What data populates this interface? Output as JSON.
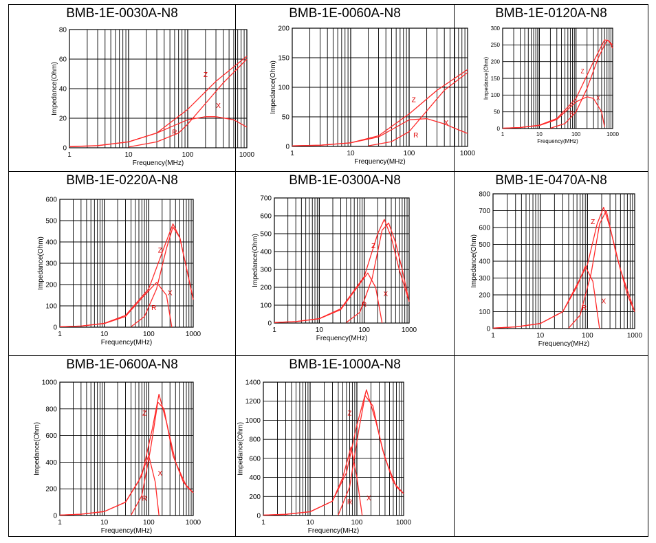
{
  "colors": {
    "curve": "#ff2a2a",
    "label": "#e00000",
    "grid": "#000000",
    "border": "#000000"
  },
  "chart_data": [
    {
      "type": "line",
      "title": "BMB-1E-0030A-N8",
      "xlabel": "Frequency(MHz)",
      "ylabel": "Impedance(Ohm)",
      "xscale": "log",
      "xlim": [
        1,
        1000
      ],
      "ylim": [
        0,
        80
      ],
      "xticks": [
        "1",
        "10",
        "100",
        "1000"
      ],
      "yticks": [
        "0",
        "20",
        "40",
        "60",
        "80"
      ],
      "grid": true,
      "series": [
        {
          "name": "Z",
          "x": [
            1,
            3,
            10,
            30,
            100,
            300,
            1000
          ],
          "y": [
            0.8,
            1.5,
            4,
            10,
            26,
            45,
            62
          ]
        },
        {
          "name": "X",
          "x": [
            1,
            3,
            10,
            30,
            100,
            200,
            300,
            600,
            1000
          ],
          "y": [
            0.7,
            1.4,
            4,
            10,
            19,
            21,
            21,
            19,
            14
          ]
        },
        {
          "name": "R",
          "x": [
            10,
            30,
            70,
            100,
            200,
            400,
            1000
          ],
          "y": [
            0.5,
            4,
            10,
            16,
            30,
            44,
            60
          ]
        }
      ],
      "labels": [
        {
          "text": "Z",
          "x": 200,
          "y": 48
        },
        {
          "text": "X",
          "x": 330,
          "y": 27
        },
        {
          "text": "R",
          "x": 60,
          "y": 9
        }
      ]
    },
    {
      "type": "line",
      "title": "BMB-1E-0060A-N8",
      "xlabel": "Frequency(MHz)",
      "ylabel": "Impedance(Ohm)",
      "xscale": "log",
      "xlim": [
        1,
        1000
      ],
      "ylim": [
        0,
        200
      ],
      "xticks": [
        "1",
        "10",
        "100",
        "1000"
      ],
      "yticks": [
        "0",
        "50",
        "100",
        "150",
        "200"
      ],
      "grid": true,
      "series": [
        {
          "name": "Z",
          "x": [
            1,
            3,
            10,
            30,
            100,
            300,
            1000
          ],
          "y": [
            1,
            2,
            6,
            18,
            55,
            95,
            130
          ]
        },
        {
          "name": "X",
          "x": [
            1,
            3,
            10,
            30,
            100,
            200,
            400,
            700,
            1000
          ],
          "y": [
            1,
            2,
            6,
            16,
            45,
            47,
            38,
            28,
            22
          ]
        },
        {
          "name": "R",
          "x": [
            20,
            50,
            100,
            200,
            400,
            1000
          ],
          "y": [
            1,
            8,
            25,
            60,
            95,
            125
          ]
        }
      ],
      "labels": [
        {
          "text": "Z",
          "x": 120,
          "y": 75
        },
        {
          "text": "X",
          "x": 430,
          "y": 36
        },
        {
          "text": "R",
          "x": 130,
          "y": 15
        }
      ]
    },
    {
      "type": "line",
      "title": "BMB-1E-0120A-N8",
      "xlabel": "Frequency(MHz)",
      "ylabel": "Impedance(Ohm)",
      "xscale": "log",
      "xlim": [
        1,
        1000
      ],
      "ylim": [
        0,
        300
      ],
      "xticks": [
        "1",
        "10",
        "100",
        "1000"
      ],
      "yticks": [
        "0",
        "50",
        "100",
        "150",
        "200",
        "250",
        "300"
      ],
      "grid": true,
      "series": [
        {
          "name": "Z",
          "x": [
            1,
            3,
            10,
            30,
            100,
            300,
            600,
            800,
            1000
          ],
          "y": [
            1,
            3,
            10,
            30,
            90,
            200,
            265,
            262,
            240
          ]
        },
        {
          "name": "X",
          "x": [
            1,
            3,
            10,
            30,
            100,
            200,
            300,
            500,
            600
          ],
          "y": [
            1,
            3,
            9,
            27,
            80,
            95,
            90,
            50,
            5
          ]
        },
        {
          "name": "R",
          "x": [
            20,
            50,
            100,
            200,
            400,
            700,
            1000
          ],
          "y": [
            1,
            15,
            50,
            120,
            210,
            265,
            250
          ]
        }
      ],
      "labels": [
        {
          "text": "Z",
          "x": 150,
          "y": 165
        },
        {
          "text": "X",
          "x": 400,
          "y": 85
        },
        {
          "text": "R",
          "x": 75,
          "y": 40
        }
      ]
    },
    {
      "type": "line",
      "title": "BMB-1E-0220A-N8",
      "xlabel": "Frequency(MHz)",
      "ylabel": "Impedance(Ohm)",
      "xscale": "log",
      "xlim": [
        1,
        1000
      ],
      "ylim": [
        0,
        600
      ],
      "xticks": [
        "1",
        "10",
        "100",
        "1000"
      ],
      "yticks": [
        "0",
        "100",
        "200",
        "300",
        "400",
        "500",
        "600"
      ],
      "grid": true,
      "series": [
        {
          "name": "Z",
          "x": [
            1,
            3,
            10,
            30,
            100,
            200,
            350,
            500,
            700,
            1000
          ],
          "y": [
            2,
            5,
            18,
            55,
            180,
            350,
            485,
            420,
            280,
            130
          ]
        },
        {
          "name": "X",
          "x": [
            1,
            3,
            10,
            30,
            80,
            150,
            250,
            330
          ],
          "y": [
            2,
            5,
            17,
            50,
            150,
            210,
            150,
            0
          ]
        },
        {
          "name": "R",
          "x": [
            40,
            80,
            150,
            250,
            350,
            500,
            700,
            1000
          ],
          "y": [
            2,
            50,
            180,
            370,
            470,
            420,
            280,
            130
          ]
        }
      ],
      "labels": [
        {
          "text": "Z",
          "x": 180,
          "y": 350
        },
        {
          "text": "X",
          "x": 300,
          "y": 150
        },
        {
          "text": "R",
          "x": 130,
          "y": 80
        }
      ]
    },
    {
      "type": "line",
      "title": "BMB-1E-0300A-N8",
      "xlabel": "Frequency(MHz)",
      "ylabel": "Impedance(Ohm)",
      "xscale": "log",
      "xlim": [
        1,
        1000
      ],
      "ylim": [
        0,
        700
      ],
      "xticks": [
        "1",
        "10",
        "100",
        "1000"
      ],
      "yticks": [
        "0",
        "100",
        "200",
        "300",
        "400",
        "500",
        "600",
        "700"
      ],
      "grid": true,
      "series": [
        {
          "name": "Z",
          "x": [
            1,
            3,
            10,
            30,
            100,
            200,
            280,
            400,
            600,
            1000
          ],
          "y": [
            3,
            8,
            25,
            80,
            260,
            500,
            580,
            480,
            300,
            120
          ]
        },
        {
          "name": "X",
          "x": [
            1,
            3,
            10,
            30,
            70,
            120,
            180,
            250
          ],
          "y": [
            3,
            8,
            24,
            75,
            200,
            280,
            200,
            0
          ]
        },
        {
          "name": "R",
          "x": [
            40,
            80,
            150,
            250,
            350,
            500,
            700,
            1000
          ],
          "y": [
            3,
            60,
            250,
            520,
            560,
            450,
            300,
            120
          ]
        }
      ],
      "labels": [
        {
          "text": "Z",
          "x": 160,
          "y": 420
        },
        {
          "text": "X",
          "x": 300,
          "y": 150
        },
        {
          "text": "R",
          "x": 100,
          "y": 90
        }
      ]
    },
    {
      "type": "line",
      "title": "BMB-1E-0470A-N8",
      "xlabel": "Frequency(MHz)",
      "ylabel": "Impedance(Ohm)",
      "xscale": "log",
      "xlim": [
        1,
        1000
      ],
      "ylim": [
        0,
        800
      ],
      "xticks": [
        "1",
        "10",
        "100",
        "1000"
      ],
      "yticks": [
        "0",
        "100",
        "200",
        "300",
        "400",
        "500",
        "600",
        "700",
        "800"
      ],
      "grid": true,
      "series": [
        {
          "name": "Z",
          "x": [
            1,
            3,
            10,
            30,
            100,
            160,
            220,
            300,
            500,
            1000
          ],
          "y": [
            3,
            10,
            30,
            100,
            380,
            620,
            720,
            600,
            350,
            100
          ]
        },
        {
          "name": "X",
          "x": [
            1,
            3,
            10,
            30,
            60,
            90,
            130,
            180
          ],
          "y": [
            3,
            10,
            30,
            100,
            250,
            370,
            280,
            0
          ]
        },
        {
          "name": "R",
          "x": [
            40,
            70,
            120,
            180,
            250,
            400,
            700,
            1000
          ],
          "y": [
            3,
            80,
            330,
            620,
            700,
            450,
            200,
            100
          ]
        }
      ],
      "labels": [
        {
          "text": "Z",
          "x": 130,
          "y": 620
        },
        {
          "text": "X",
          "x": 220,
          "y": 150
        },
        {
          "text": "R",
          "x": 85,
          "y": 110
        }
      ]
    },
    {
      "type": "line",
      "title": "BMB-1E-0600A-N8",
      "xlabel": "Frequency(MHz)",
      "ylabel": "Impedance(Ohm)",
      "xscale": "log",
      "xlim": [
        1,
        1000
      ],
      "ylim": [
        0,
        1000
      ],
      "xticks": [
        "1",
        "10",
        "100",
        "1000"
      ],
      "yticks": [
        "0",
        "200",
        "400",
        "600",
        "800",
        "1000"
      ],
      "grid": true,
      "series": [
        {
          "name": "Z",
          "x": [
            1,
            3,
            10,
            30,
            70,
            120,
            170,
            250,
            400,
            700,
            1000
          ],
          "y": [
            3,
            10,
            30,
            100,
            300,
            650,
            910,
            700,
            400,
            220,
            170
          ]
        },
        {
          "name": "X",
          "x": [
            1,
            3,
            10,
            30,
            60,
            100,
            140,
            170
          ],
          "y": [
            3,
            10,
            30,
            100,
            260,
            450,
            250,
            0
          ]
        },
        {
          "name": "R",
          "x": [
            40,
            70,
            110,
            160,
            220,
            350,
            600,
            1000
          ],
          "y": [
            3,
            150,
            500,
            850,
            800,
            450,
            250,
            170
          ]
        }
      ],
      "labels": [
        {
          "text": "Z",
          "x": 80,
          "y": 750
        },
        {
          "text": "X",
          "x": 180,
          "y": 300
        },
        {
          "text": "R",
          "x": 80,
          "y": 110
        }
      ]
    },
    {
      "type": "line",
      "title": "BMB-1E-1000A-N8",
      "xlabel": "Frequency(MHz)",
      "ylabel": "Impedance(Ohm)",
      "xscale": "log",
      "xlim": [
        1,
        1000
      ],
      "ylim": [
        0,
        1400
      ],
      "xticks": [
        "1",
        "10",
        "100",
        "1000"
      ],
      "yticks": [
        "0",
        "200",
        "400",
        "600",
        "800",
        "1000",
        "1200",
        "1400"
      ],
      "grid": true,
      "series": [
        {
          "name": "Z",
          "x": [
            1,
            3,
            10,
            30,
            60,
            100,
            160,
            250,
            400,
            700,
            1000
          ],
          "y": [
            4,
            12,
            40,
            150,
            450,
            950,
            1320,
            1000,
            600,
            300,
            230
          ]
        },
        {
          "name": "X",
          "x": [
            1,
            3,
            10,
            30,
            50,
            75,
            100,
            130
          ],
          "y": [
            4,
            12,
            40,
            150,
            400,
            720,
            400,
            0
          ]
        },
        {
          "name": "R",
          "x": [
            40,
            70,
            110,
            150,
            220,
            350,
            600,
            1000
          ],
          "y": [
            4,
            300,
            900,
            1260,
            1150,
            700,
            350,
            230
          ]
        }
      ],
      "labels": [
        {
          "text": "Z",
          "x": 70,
          "y": 1050
        },
        {
          "text": "X",
          "x": 180,
          "y": 160
        },
        {
          "text": "R",
          "x": 70,
          "y": 120
        }
      ]
    }
  ]
}
